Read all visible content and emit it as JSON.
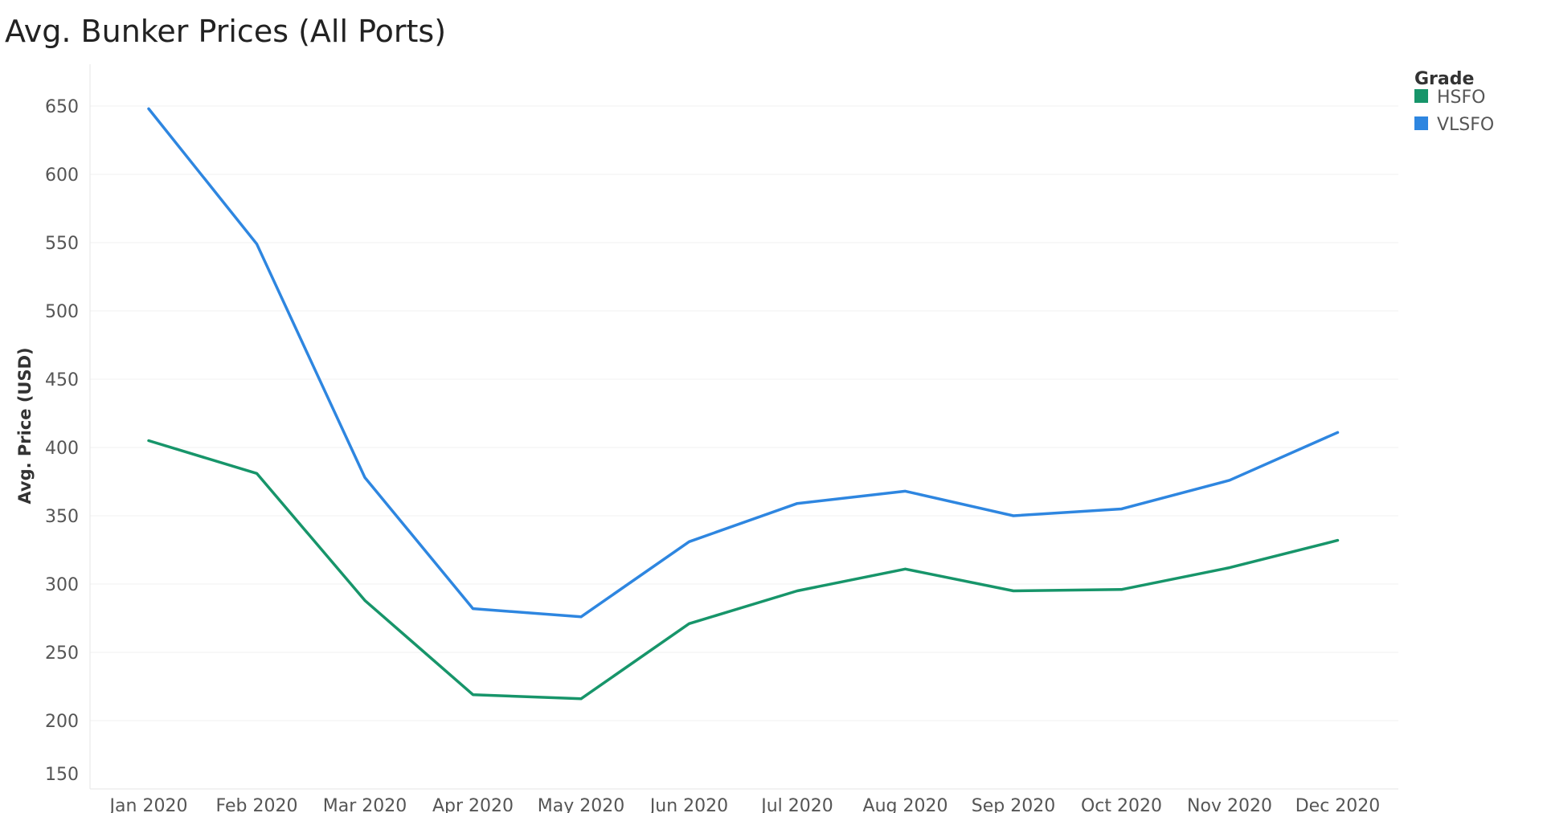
{
  "chart_data": {
    "type": "line",
    "title": "Avg. Bunker Prices  (All Ports)",
    "xlabel": "",
    "ylabel": "Avg. Price (USD)",
    "ylim": [
      150,
      650
    ],
    "yticks": [
      150,
      200,
      250,
      300,
      350,
      400,
      450,
      500,
      550,
      600,
      650
    ],
    "grid": true,
    "categories": [
      "Jan 2020",
      "Feb 2020",
      "Mar 2020",
      "Apr 2020",
      "May 2020",
      "Jun 2020",
      "Jul 2020",
      "Aug 2020",
      "Sep 2020",
      "Oct 2020",
      "Nov 2020",
      "Dec 2020"
    ],
    "legend": {
      "title": "Grade",
      "placement": "top-right"
    },
    "series": [
      {
        "name": "HSFO",
        "color": "#17956a",
        "values": [
          405,
          381,
          288,
          219,
          216,
          271,
          295,
          311,
          295,
          296,
          312,
          332
        ]
      },
      {
        "name": "VLSFO",
        "color": "#2e86e0",
        "values": [
          648,
          549,
          378,
          282,
          276,
          331,
          359,
          368,
          350,
          355,
          376,
          411
        ]
      }
    ]
  }
}
